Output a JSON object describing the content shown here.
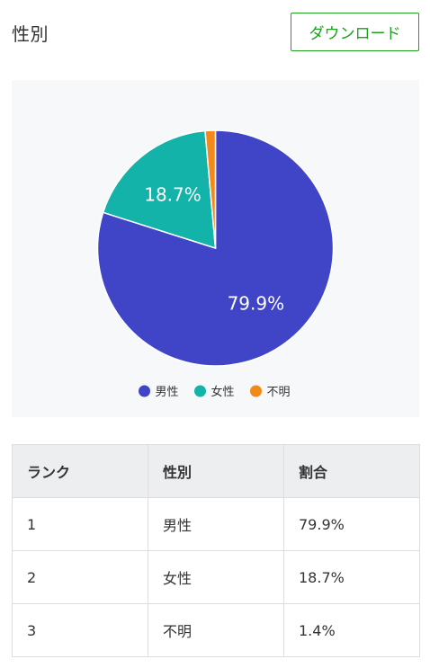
{
  "header": {
    "title": "性別",
    "download_label": "ダウンロード"
  },
  "chart_data": {
    "type": "pie",
    "slices": [
      {
        "label": "男性",
        "value": 79.9,
        "display": "79.9%",
        "color": "#4045c8"
      },
      {
        "label": "女性",
        "value": 18.7,
        "display": "18.7%",
        "color": "#13b3aa"
      },
      {
        "label": "不明",
        "value": 1.4,
        "display": "",
        "color": "#f28a1b"
      }
    ],
    "legend_position": "bottom"
  },
  "table": {
    "headers": [
      "ランク",
      "性別",
      "割合"
    ],
    "rows": [
      [
        "1",
        "男性",
        "79.9%"
      ],
      [
        "2",
        "女性",
        "18.7%"
      ],
      [
        "3",
        "不明",
        "1.4%"
      ]
    ]
  }
}
